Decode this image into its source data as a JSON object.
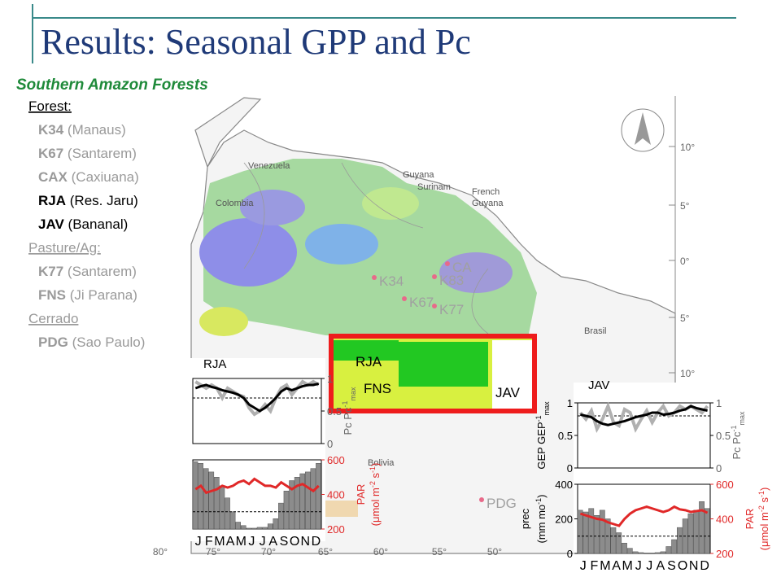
{
  "title": "Results: Seasonal GPP and Pc",
  "subtitle": "Southern Amazon Forests",
  "site_list": [
    {
      "heading": "Forest:",
      "active": true,
      "sites": [
        {
          "code": "K34",
          "place": "(Manaus)",
          "active": false
        },
        {
          "code": "K67",
          "place": "(Santarem)",
          "active": false
        },
        {
          "code": "CAX",
          "place": "(Caxiuana)",
          "active": false
        },
        {
          "code": "RJA",
          "place": "(Res. Jaru)",
          "active": true
        },
        {
          "code": "JAV",
          "place": "(Bananal)",
          "active": true
        }
      ]
    },
    {
      "heading": "Pasture/Ag:",
      "active": false,
      "sites": [
        {
          "code": "K77",
          "place": "(Santarem)",
          "active": false
        },
        {
          "code": "FNS",
          "place": "(Ji Parana)",
          "active": false
        }
      ]
    },
    {
      "heading": "Cerrado",
      "active": false,
      "sites": [
        {
          "code": "PDG",
          "place": "(Sao Paulo)",
          "active": false
        }
      ]
    }
  ],
  "map": {
    "countries": [
      "Venezuela",
      "Colombia",
      "Guyana",
      "Surinam",
      "French",
      "Guyana",
      "Brasil",
      "Bolivia"
    ],
    "sites": [
      {
        "label": "K34",
        "active": false
      },
      {
        "label": "K67",
        "active": false
      },
      {
        "label": "K83",
        "active": false
      },
      {
        "label": "K77",
        "active": false
      },
      {
        "label": "CA",
        "active": false
      },
      {
        "label": "RJA",
        "active": true
      },
      {
        "label": "FNS",
        "active": true
      },
      {
        "label": "JAV",
        "active": true
      },
      {
        "label": "PDG",
        "active": false
      }
    ],
    "lat_labels": [
      "10°",
      "5°",
      "0°",
      "5°",
      "10°"
    ],
    "lon_labels": [
      "80°",
      "75°",
      "70°",
      "65°",
      "60°",
      "55°",
      "50°"
    ]
  },
  "charts": [
    {
      "site": "RJA",
      "months": [
        "J",
        "F",
        "M",
        "A",
        "M",
        "J",
        "J",
        "A",
        "S",
        "O",
        "N",
        "D"
      ],
      "top": {
        "y2lim": [
          0,
          1
        ],
        "y2ticks": [
          0,
          0.5,
          1
        ],
        "reference": 0.7,
        "y2_label": [
          {
            "t": "Pc Pc"
          },
          {
            "t": "-1",
            "pos": "super"
          },
          {
            "t": "max",
            "pos": "sub"
          }
        ],
        "gep": {
          "color": "#000000",
          "values": [
            0.85,
            0.88,
            0.9,
            0.87,
            0.85,
            0.82,
            0.8,
            0.78,
            0.75,
            0.7,
            0.6,
            0.55,
            0.5,
            0.55,
            0.62,
            0.7,
            0.8,
            0.85,
            0.82,
            0.85,
            0.88,
            0.9,
            0.9,
            0.92
          ]
        },
        "pc": {
          "color": "#b0b0b0",
          "values": [
            0.95,
            0.9,
            0.85,
            0.9,
            0.85,
            0.7,
            0.85,
            0.8,
            0.75,
            0.72,
            0.55,
            0.45,
            0.5,
            0.6,
            0.5,
            0.7,
            0.85,
            0.9,
            0.75,
            0.85,
            0.95,
            0.9,
            0.95,
            0.9
          ]
        }
      },
      "bottom": {
        "ylim": [
          0,
          400
        ],
        "y2lim": [
          200,
          600
        ],
        "y2ticks": [
          200,
          400,
          600
        ],
        "reference": 100,
        "y2_label": [
          [
            {
              "t": "PAR"
            }
          ],
          [
            {
              "t": "(μmol m"
            },
            {
              "t": "-2",
              "pos": "super"
            },
            {
              "t": " s"
            },
            {
              "t": "-1",
              "pos": "super"
            },
            {
              "t": ")"
            }
          ]
        ],
        "prec": {
          "color": "#8c8c8c",
          "values": [
            390,
            380,
            350,
            330,
            300,
            250,
            180,
            100,
            40,
            20,
            5,
            5,
            10,
            10,
            30,
            60,
            150,
            220,
            280,
            300,
            320,
            330,
            350,
            380
          ]
        },
        "par": {
          "color": "#e02828",
          "values": [
            430,
            450,
            410,
            420,
            430,
            450,
            440,
            450,
            470,
            480,
            460,
            490,
            470,
            450,
            450,
            440,
            470,
            450,
            430,
            450,
            460,
            440,
            420,
            450
          ]
        }
      }
    },
    {
      "site": "JAV",
      "months": [
        "J",
        "F",
        "M",
        "A",
        "M",
        "J",
        "J",
        "A",
        "S",
        "O",
        "N",
        "D"
      ],
      "top": {
        "ylim": [
          0,
          1
        ],
        "yticks": [
          0,
          0.5,
          1
        ],
        "y2lim": [
          0,
          1
        ],
        "y2ticks": [
          0,
          0.5,
          1
        ],
        "reference": 0.8,
        "y_label": [
          {
            "t": "GEP GEP"
          },
          {
            "t": "-1",
            "pos": "super"
          },
          {
            "t": "max",
            "pos": "sub"
          }
        ],
        "y2_label": [
          {
            "t": "Pc Pc"
          },
          {
            "t": "-1",
            "pos": "super"
          },
          {
            "t": "max",
            "pos": "sub"
          }
        ],
        "gep": {
          "color": "#000000",
          "values": [
            0.82,
            0.8,
            0.78,
            0.72,
            0.68,
            0.66,
            0.68,
            0.7,
            0.72,
            0.75,
            0.78,
            0.8,
            0.82,
            0.85,
            0.85,
            0.82,
            0.83,
            0.85,
            0.88,
            0.9,
            0.95,
            0.92,
            0.9,
            0.88
          ]
        },
        "pc": {
          "color": "#b0b0b0",
          "values": [
            0.85,
            0.75,
            0.88,
            0.6,
            0.75,
            0.95,
            0.7,
            0.65,
            0.9,
            0.85,
            0.6,
            0.75,
            0.88,
            0.7,
            0.85,
            0.95,
            0.8,
            0.85,
            0.95,
            0.9,
            0.95,
            0.9,
            0.85,
            0.95
          ]
        }
      },
      "bottom": {
        "ylim": [
          0,
          400
        ],
        "yticks": [
          0,
          200,
          400
        ],
        "y2lim": [
          200,
          600
        ],
        "y2ticks": [
          200,
          400,
          600
        ],
        "reference": 100,
        "y_label": [
          [
            {
              "t": "prec"
            }
          ],
          [
            {
              "t": "(mm mo"
            },
            {
              "t": "-1",
              "pos": "super"
            },
            {
              "t": ")"
            }
          ]
        ],
        "y2_label": [
          [
            {
              "t": "PAR"
            }
          ],
          [
            {
              "t": "(μmol m"
            },
            {
              "t": "-2",
              "pos": "super"
            },
            {
              "t": " s"
            },
            {
              "t": "-1",
              "pos": "super"
            },
            {
              "t": ")"
            }
          ]
        ],
        "prec": {
          "color": "#8c8c8c",
          "values": [
            250,
            240,
            260,
            220,
            250,
            200,
            150,
            120,
            60,
            30,
            10,
            5,
            0,
            0,
            5,
            10,
            40,
            80,
            150,
            200,
            230,
            250,
            300,
            260
          ]
        },
        "par": {
          "color": "#e02828",
          "values": [
            430,
            420,
            410,
            400,
            395,
            380,
            370,
            360,
            400,
            430,
            450,
            460,
            470,
            460,
            450,
            440,
            450,
            470,
            455,
            450,
            440,
            445,
            450,
            435
          ]
        }
      }
    }
  ]
}
